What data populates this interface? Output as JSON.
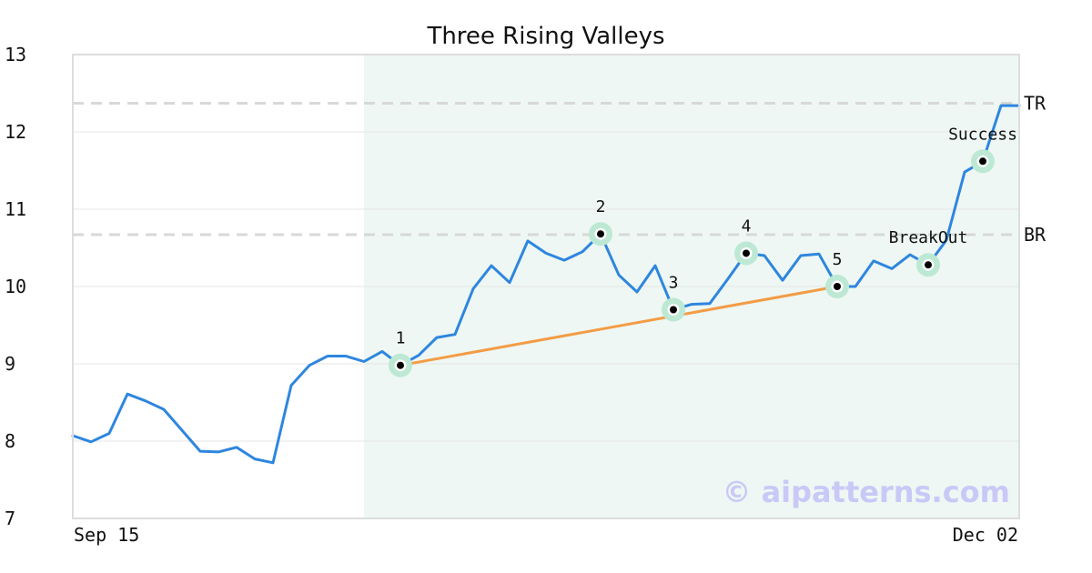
{
  "chart_data": {
    "type": "line",
    "title": "Three Rising Valleys",
    "ylim": [
      7,
      13
    ],
    "yticks": [
      7,
      8,
      9,
      10,
      11,
      12,
      13
    ],
    "x_tick_labels": {
      "first": "Sep 15",
      "last": "Dec 02"
    },
    "grid": "horizontal",
    "colors": {
      "line": "#2e86de",
      "trend": "#f39c45",
      "highlight_region": "#eef7f3",
      "marker_halo": "#bde8d4",
      "reference": "#d8d8d8",
      "frame": "#dddddd"
    },
    "series": [
      {
        "values": [
          8.07,
          7.99,
          8.1,
          8.61,
          8.52,
          8.41,
          8.14,
          7.87,
          7.86,
          7.92,
          7.77,
          7.72,
          8.72,
          8.98,
          9.1,
          9.1,
          9.03,
          9.16,
          8.98,
          9.11,
          9.34,
          9.38,
          9.97,
          10.27,
          10.05,
          10.59,
          10.43,
          10.34,
          10.45,
          10.68,
          10.15,
          9.93,
          10.27,
          9.7,
          9.77,
          9.78,
          10.1,
          10.43,
          10.4,
          10.08,
          10.4,
          10.42,
          10.0,
          10.0,
          10.33,
          10.23,
          10.41,
          10.28,
          10.6,
          11.48,
          11.62,
          12.34,
          12.34
        ]
      }
    ],
    "highlight_region": {
      "start_index": 16,
      "end_index": 52
    },
    "reference_lines": [
      {
        "label": "TR",
        "value": 12.37
      },
      {
        "label": "BR",
        "value": 10.67
      }
    ],
    "trend_line": {
      "from_index": 18,
      "from_value": 8.98,
      "to_index": 42,
      "to_value": 10.0
    },
    "marked_points": [
      {
        "label": "1",
        "index": 18,
        "value": 8.98
      },
      {
        "label": "2",
        "index": 29,
        "value": 10.68
      },
      {
        "label": "3",
        "index": 33,
        "value": 9.7
      },
      {
        "label": "4",
        "index": 37,
        "value": 10.43
      },
      {
        "label": "5",
        "index": 42,
        "value": 10.0
      },
      {
        "label": "BreakOut",
        "index": 47,
        "value": 10.28
      },
      {
        "label": "Success",
        "index": 50,
        "value": 11.62
      }
    ],
    "watermark": "© aipatterns.com"
  }
}
